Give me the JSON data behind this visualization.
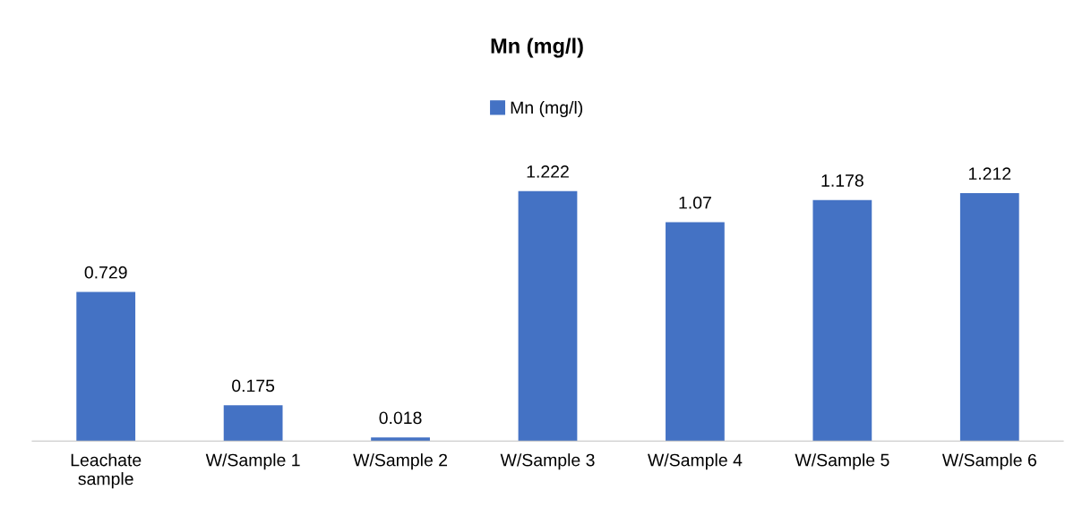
{
  "chart_data": {
    "type": "bar",
    "title": "Mn (mg/l)",
    "categories": [
      "Leachate\nsample",
      "W/Sample 1",
      "W/Sample 2",
      "W/Sample 3",
      "W/Sample 4",
      "W/Sample 5",
      "W/Sample 6"
    ],
    "series": [
      {
        "name": "Mn (mg/l)",
        "color": "#4472c4",
        "values": [
          0.729,
          0.175,
          0.018,
          1.222,
          1.07,
          1.178,
          1.212
        ]
      }
    ],
    "data_labels": true,
    "legend": "top",
    "grid": false
  }
}
